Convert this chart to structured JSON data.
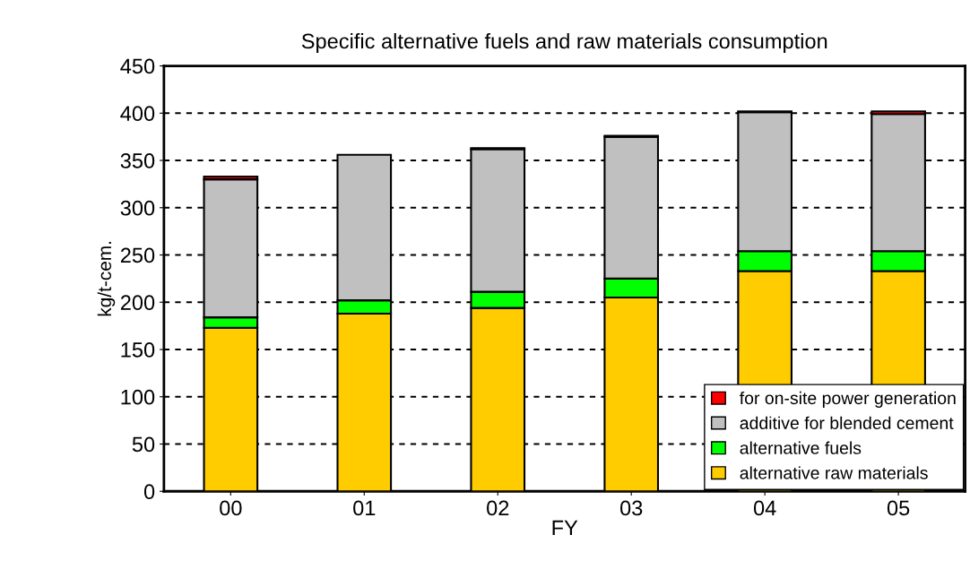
{
  "chart_data": {
    "type": "bar",
    "stacked": true,
    "title": "Specific alternative fuels and raw materials consumption",
    "xlabel": "FY",
    "ylabel": "kg/t-cem.",
    "categories": [
      "00",
      "01",
      "02",
      "03",
      "04",
      "05"
    ],
    "series": [
      {
        "name": "alternative raw materials",
        "color": "#ffcc00",
        "values": [
          173,
          188,
          194,
          205,
          233,
          233
        ]
      },
      {
        "name": "alternative fuels",
        "color": "#00ff00",
        "values": [
          11,
          14,
          17,
          20,
          21,
          21
        ]
      },
      {
        "name": "additive for blended cement",
        "color": "#c0c0c0",
        "values": [
          146,
          154,
          151,
          150,
          147,
          145
        ]
      },
      {
        "name": "for on-site power generation",
        "color": "#ff0000",
        "values": [
          3,
          null,
          1,
          1,
          1,
          3
        ]
      }
    ],
    "ylim": [
      0,
      450
    ],
    "yticks": [
      0,
      50,
      100,
      150,
      200,
      250,
      300,
      350,
      400,
      450
    ],
    "grid": "y",
    "legend": "bottom right"
  }
}
